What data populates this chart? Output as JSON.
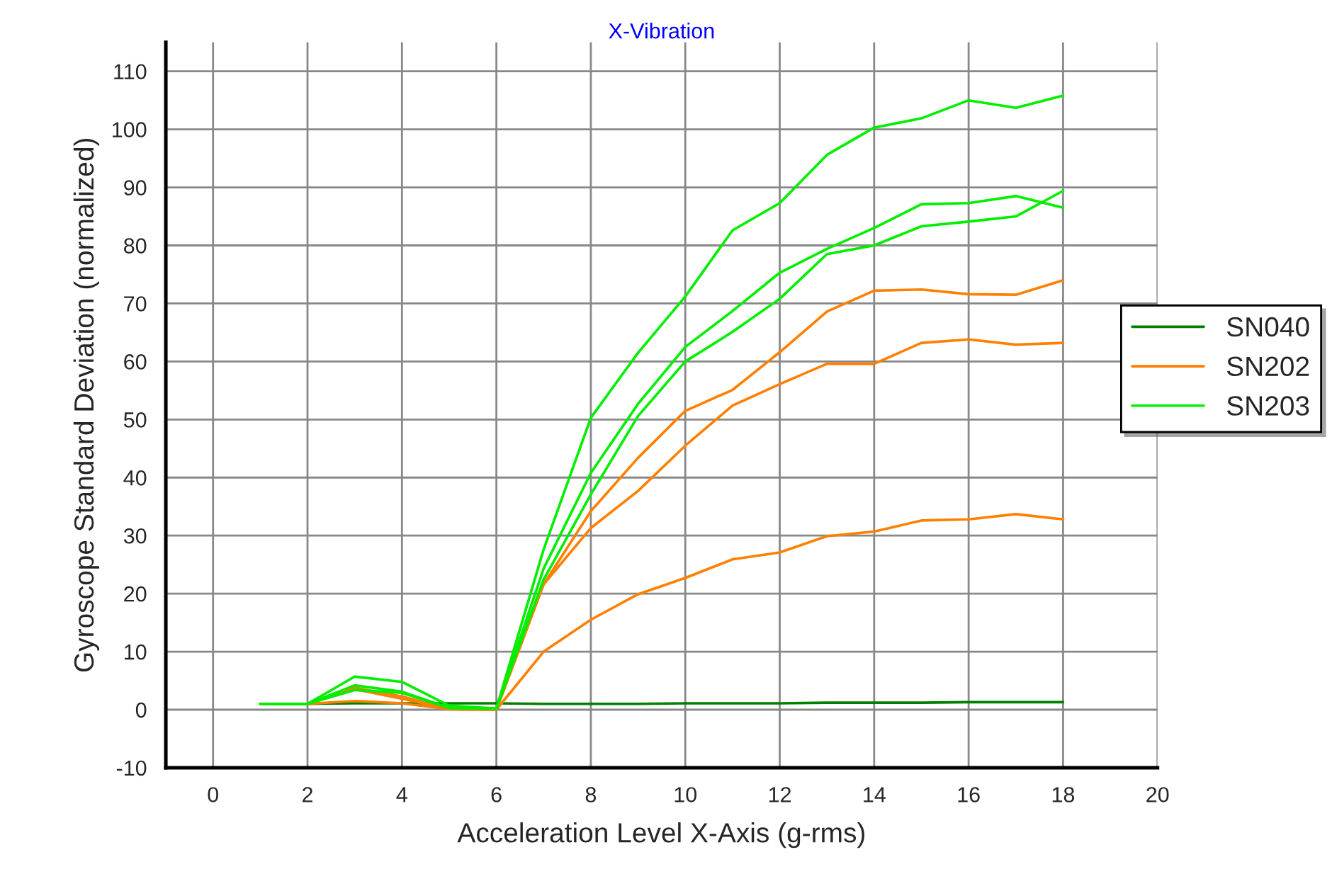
{
  "chart_data": {
    "type": "line",
    "title": "X-Vibration",
    "xlabel": "Acceleration Level X-Axis (g-rms)",
    "ylabel": "Gyroscope Standard Deviation (normalized)",
    "x": [
      1,
      2,
      3,
      4,
      5,
      6,
      7,
      8,
      9,
      10,
      11,
      12,
      13,
      14,
      15,
      16,
      17,
      18
    ],
    "series": [
      {
        "name": "SN040",
        "color": "#008000",
        "values": [
          1,
          1,
          1.1,
          1.1,
          1.1,
          1.1,
          1,
          1,
          1,
          1.1,
          1.1,
          1.1,
          1.2,
          1.2,
          1.2,
          1.3,
          1.3,
          1.3
        ]
      },
      {
        "name": "SN202",
        "color": "#ff8000",
        "values": [
          1,
          1,
          3.8,
          2.3,
          0.1,
          0,
          21.6,
          34.2,
          43.4,
          51.5,
          55.1,
          61.6,
          68.6,
          72.2,
          72.4,
          71.6,
          71.5,
          74
        ]
      },
      {
        "color": "#ff8000",
        "values": [
          1,
          1,
          3.5,
          1.9,
          0.1,
          0,
          21.6,
          31.3,
          37.7,
          45.5,
          52.4,
          56.1,
          59.6,
          59.6,
          63.2,
          63.8,
          62.9,
          63.2
        ]
      },
      {
        "color": "#ff8000",
        "values": [
          1,
          1,
          1.5,
          1.1,
          0.1,
          0,
          10,
          15.5,
          19.9,
          22.7,
          25.9,
          27.1,
          29.9,
          30.7,
          32.6,
          32.8,
          33.7,
          32.8
        ]
      },
      {
        "name": "SN203",
        "color": "#00ee00",
        "values": [
          1,
          1,
          5.7,
          4.8,
          0.7,
          0.2,
          27.6,
          50.3,
          61.5,
          71.2,
          82.6,
          87.3,
          95.6,
          100.3,
          101.9,
          105,
          103.7,
          105.8
        ]
      },
      {
        "color": "#00ee00",
        "values": [
          1,
          1,
          4.2,
          3.1,
          0.3,
          0.2,
          24.3,
          40.8,
          52.7,
          62.5,
          68.7,
          75.3,
          79.4,
          83,
          87.1,
          87.3,
          88.5,
          86.5
        ]
      },
      {
        "color": "#00ee00",
        "values": [
          1,
          1,
          3.4,
          2.9,
          0.3,
          0.2,
          22.4,
          37.1,
          50.6,
          60,
          65.1,
          70.8,
          78.5,
          80,
          83.3,
          84.1,
          85,
          89.4
        ]
      }
    ],
    "xlim": [
      -1,
      20
    ],
    "xticks": [
      0,
      2,
      4,
      6,
      8,
      10,
      12,
      14,
      16,
      18,
      20
    ],
    "ylim": [
      -10,
      115
    ],
    "yticks": [
      -10,
      0,
      10,
      20,
      30,
      40,
      50,
      60,
      70,
      80,
      90,
      100,
      110
    ],
    "grid": true,
    "legend": "right",
    "marker": "none",
    "line_style": "solid"
  }
}
